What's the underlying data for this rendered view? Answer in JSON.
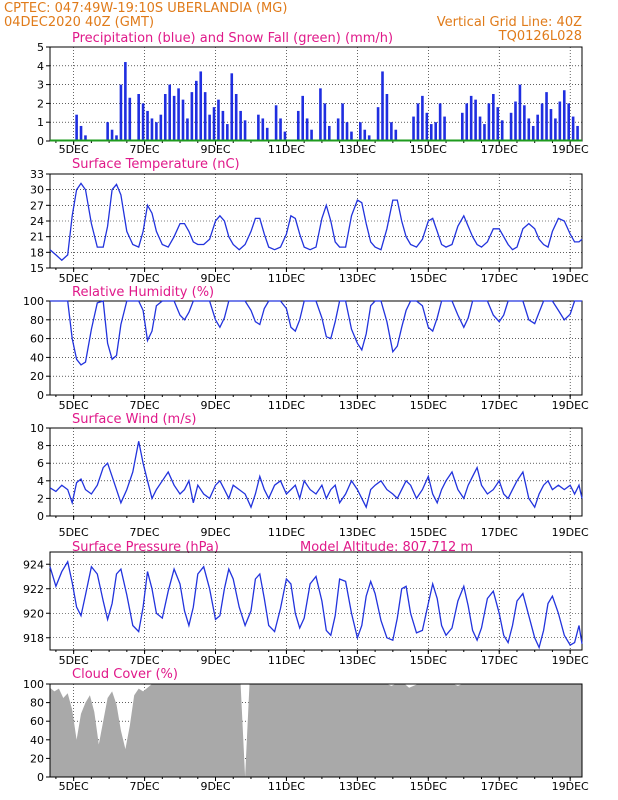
{
  "header": {
    "source_line": "CPTEC:   047:49W-19:10S   UBERLANDIA (MG)",
    "date_line": "04DEC2020 40Z (GMT)",
    "grid_note": "Vertical Grid Line: 40Z",
    "code": "TQ0126L028"
  },
  "x_axis": {
    "tick_labels": [
      "5DEC",
      "7DEC",
      "9DEC",
      "11DEC",
      "13DEC",
      "15DEC",
      "17DEC",
      "19DEC"
    ],
    "range_hours": [
      0,
      360
    ]
  },
  "colors": {
    "line": "#2233dd",
    "bars": "#1f2ee0",
    "snow": "#1e9b1e",
    "cloud": "#a9a9a9",
    "header": "#e07b1a",
    "title": "#e0198a"
  },
  "chart_data": [
    {
      "type": "bar",
      "title": "Precipitation (blue) and Snow Fall (green) (mm/h)",
      "ylim": [
        0,
        5
      ],
      "yticks": [
        "0",
        "1",
        "2",
        "3",
        "4",
        "5"
      ],
      "x_hours": [
        18,
        21,
        24,
        39,
        42,
        45,
        48,
        51,
        54,
        60,
        63,
        66,
        69,
        72,
        75,
        78,
        81,
        84,
        87,
        90,
        93,
        96,
        99,
        102,
        105,
        108,
        111,
        114,
        117,
        120,
        123,
        126,
        129,
        132,
        141,
        144,
        147,
        153,
        156,
        159,
        168,
        171,
        174,
        177,
        183,
        186,
        189,
        195,
        198,
        201,
        204,
        210,
        213,
        216,
        222,
        225,
        228,
        231,
        234,
        246,
        249,
        252,
        255,
        258,
        261,
        264,
        267,
        279,
        282,
        285,
        288,
        291,
        294,
        297,
        300,
        303,
        306,
        312,
        315,
        318,
        321,
        324,
        327,
        330,
        333,
        336,
        339,
        342,
        345,
        348,
        351,
        354,
        357
      ],
      "values": [
        1.4,
        0.8,
        0.3,
        1.0,
        0.6,
        0.3,
        3.0,
        4.2,
        2.3,
        2.5,
        2.0,
        1.6,
        1.2,
        1.0,
        1.4,
        2.5,
        3.0,
        2.4,
        2.8,
        2.2,
        1.2,
        2.6,
        3.2,
        3.7,
        2.6,
        1.4,
        1.8,
        2.2,
        1.6,
        0.9,
        3.6,
        2.5,
        1.6,
        1.1,
        1.4,
        1.2,
        0.7,
        1.9,
        1.2,
        0.5,
        1.6,
        2.4,
        1.2,
        0.6,
        2.8,
        2.0,
        0.8,
        1.2,
        2.0,
        1.0,
        0.5,
        1.0,
        0.6,
        0.3,
        1.8,
        3.7,
        2.5,
        1.0,
        0.6,
        1.3,
        2.0,
        2.4,
        1.5,
        0.9,
        1.0,
        2.0,
        1.3,
        1.5,
        2.0,
        2.4,
        2.2,
        1.3,
        0.9,
        2.0,
        2.5,
        1.8,
        1.1,
        1.5,
        2.1,
        3.0,
        1.9,
        1.2,
        0.8,
        1.4,
        2.0,
        2.6,
        1.7,
        1.2,
        2.1,
        2.7,
        2.0,
        1.3,
        0.8
      ],
      "snow_values": 0
    },
    {
      "type": "line",
      "title": "Surface Temperature (nC)",
      "ylim": [
        15,
        33
      ],
      "yticks": [
        "15",
        "18",
        "21",
        "24",
        "27",
        "30",
        "33"
      ],
      "x_hours": [
        0,
        4,
        8,
        12,
        15,
        18,
        21,
        24,
        28,
        32,
        36,
        39,
        42,
        45,
        48,
        52,
        56,
        60,
        63,
        66,
        69,
        72,
        76,
        80,
        84,
        88,
        91,
        94,
        97,
        100,
        104,
        108,
        112,
        115,
        118,
        121,
        124,
        128,
        132,
        136,
        139,
        142,
        145,
        148,
        152,
        156,
        160,
        163,
        166,
        169,
        172,
        176,
        180,
        184,
        187,
        190,
        193,
        196,
        200,
        204,
        208,
        211,
        214,
        217,
        220,
        224,
        228,
        232,
        235,
        238,
        241,
        244,
        248,
        252,
        256,
        259,
        262,
        265,
        268,
        272,
        276,
        280,
        283,
        286,
        289,
        292,
        296,
        300,
        304,
        307,
        310,
        313,
        316,
        320,
        324,
        328,
        331,
        334,
        337,
        340,
        344,
        348,
        352,
        355,
        358,
        360
      ],
      "values": [
        18.5,
        17.5,
        16.5,
        17.5,
        25,
        30,
        31.2,
        30,
        23.5,
        19,
        19,
        23,
        30,
        31,
        29,
        22,
        19.5,
        19,
        22,
        27,
        25.5,
        22,
        19.5,
        19,
        21,
        23.5,
        23.5,
        22,
        20,
        19.5,
        19.5,
        20.5,
        24,
        25,
        24,
        21,
        19.5,
        18.5,
        19.5,
        22,
        24.5,
        24.5,
        21.5,
        19,
        18.5,
        19,
        21.5,
        25,
        24.5,
        21.5,
        19,
        18.5,
        19,
        24.5,
        27,
        24,
        20,
        19,
        19,
        25,
        28,
        27.5,
        23.5,
        20,
        19,
        18.5,
        22.5,
        28,
        28,
        24,
        21,
        19.5,
        19,
        20.5,
        24,
        24.5,
        22,
        19.5,
        19,
        19.5,
        23,
        25,
        23,
        21,
        19.5,
        19,
        20,
        22.5,
        22.5,
        21,
        19.5,
        18.5,
        19,
        22.5,
        23.5,
        22.5,
        20.5,
        19.5,
        19,
        22,
        24.5,
        24,
        21.5,
        20,
        20,
        20.5
      ]
    },
    {
      "type": "line",
      "title": "Relative Humidity (%)",
      "ylim": [
        0,
        100
      ],
      "yticks": [
        "0",
        "20",
        "40",
        "60",
        "80",
        "100"
      ],
      "x_hours": [
        0,
        4,
        8,
        12,
        15,
        18,
        21,
        24,
        28,
        32,
        36,
        39,
        42,
        45,
        48,
        52,
        56,
        60,
        63,
        66,
        69,
        72,
        76,
        80,
        84,
        88,
        91,
        94,
        97,
        100,
        104,
        108,
        112,
        115,
        118,
        121,
        124,
        128,
        132,
        136,
        139,
        142,
        145,
        148,
        152,
        156,
        160,
        163,
        166,
        169,
        172,
        176,
        180,
        184,
        187,
        190,
        193,
        196,
        200,
        204,
        208,
        211,
        214,
        217,
        220,
        224,
        228,
        232,
        235,
        238,
        241,
        244,
        248,
        252,
        256,
        259,
        262,
        265,
        268,
        272,
        276,
        280,
        283,
        286,
        289,
        292,
        296,
        300,
        304,
        307,
        310,
        313,
        316,
        320,
        324,
        328,
        331,
        334,
        337,
        340,
        344,
        348,
        352,
        355,
        358,
        360
      ],
      "values": [
        100,
        100,
        100,
        100,
        60,
        38,
        32,
        35,
        70,
        98,
        100,
        55,
        38,
        42,
        75,
        100,
        100,
        100,
        90,
        58,
        68,
        95,
        100,
        100,
        100,
        85,
        80,
        88,
        100,
        100,
        100,
        100,
        80,
        72,
        82,
        100,
        100,
        100,
        100,
        90,
        78,
        75,
        92,
        100,
        100,
        100,
        92,
        72,
        68,
        80,
        100,
        100,
        100,
        82,
        62,
        60,
        78,
        100,
        100,
        70,
        55,
        48,
        65,
        95,
        100,
        100,
        78,
        46,
        52,
        72,
        90,
        100,
        100,
        95,
        72,
        68,
        82,
        100,
        100,
        100,
        85,
        72,
        82,
        100,
        100,
        100,
        100,
        85,
        78,
        85,
        100,
        100,
        100,
        100,
        80,
        76,
        88,
        100,
        100,
        100,
        90,
        80,
        86,
        100,
        100,
        100
      ]
    },
    {
      "type": "line",
      "title": "Surface Wind (m/s)",
      "ylim": [
        0,
        10
      ],
      "yticks": [
        "0",
        "2",
        "4",
        "6",
        "8",
        "10"
      ],
      "x_hours": [
        0,
        4,
        8,
        12,
        15,
        18,
        21,
        24,
        28,
        32,
        36,
        39,
        42,
        45,
        48,
        52,
        56,
        60,
        63,
        66,
        69,
        72,
        76,
        80,
        84,
        88,
        91,
        94,
        97,
        100,
        104,
        108,
        112,
        115,
        118,
        121,
        124,
        128,
        132,
        136,
        139,
        142,
        145,
        148,
        152,
        156,
        160,
        163,
        166,
        169,
        172,
        176,
        180,
        184,
        187,
        190,
        193,
        196,
        200,
        204,
        208,
        211,
        214,
        217,
        220,
        224,
        228,
        232,
        235,
        238,
        241,
        244,
        248,
        252,
        256,
        259,
        262,
        265,
        268,
        272,
        276,
        280,
        283,
        286,
        289,
        292,
        296,
        300,
        304,
        307,
        310,
        313,
        316,
        320,
        324,
        328,
        331,
        334,
        337,
        340,
        344,
        348,
        352,
        355,
        358,
        360
      ],
      "values": [
        3.2,
        2.8,
        3.5,
        3.0,
        1.5,
        3.8,
        4.2,
        3.0,
        2.5,
        3.5,
        5.5,
        6.0,
        4.5,
        3.0,
        1.5,
        3.0,
        5.0,
        8.5,
        6.0,
        4.0,
        2.0,
        3.0,
        4.0,
        5.0,
        3.5,
        2.5,
        3.0,
        4.0,
        1.5,
        3.5,
        2.5,
        2.0,
        3.5,
        4.0,
        3.0,
        2.0,
        3.5,
        3.0,
        2.5,
        1.0,
        2.5,
        4.5,
        3.0,
        2.0,
        3.5,
        4.0,
        2.5,
        3.0,
        3.5,
        2.0,
        4.0,
        3.0,
        2.5,
        3.5,
        2.0,
        3.0,
        3.5,
        1.5,
        2.5,
        4.0,
        3.0,
        2.0,
        1.0,
        3.0,
        3.5,
        4.0,
        3.0,
        2.5,
        2.0,
        3.0,
        4.0,
        3.5,
        2.0,
        3.0,
        4.5,
        2.5,
        1.5,
        3.0,
        4.0,
        5.0,
        3.0,
        2.0,
        3.5,
        4.5,
        5.5,
        3.5,
        2.5,
        3.0,
        4.0,
        2.5,
        2.0,
        3.0,
        4.0,
        5.0,
        2.0,
        1.0,
        2.5,
        3.5,
        4.0,
        3.0,
        3.5,
        3.0,
        3.5,
        2.5,
        3.5,
        2.0
      ]
    },
    {
      "type": "line",
      "title": "Surface Pressure (hPa)",
      "annotation": "Model Altitude: 807.712 m",
      "ylim": [
        917,
        925
      ],
      "yticks": [
        "918",
        "920",
        "922",
        "924"
      ],
      "x_hours": [
        0,
        4,
        8,
        12,
        15,
        18,
        21,
        24,
        28,
        32,
        36,
        39,
        42,
        45,
        48,
        52,
        56,
        60,
        63,
        66,
        69,
        72,
        76,
        80,
        84,
        88,
        91,
        94,
        97,
        100,
        104,
        108,
        112,
        115,
        118,
        121,
        124,
        128,
        132,
        136,
        139,
        142,
        145,
        148,
        152,
        156,
        160,
        163,
        166,
        169,
        172,
        176,
        180,
        184,
        187,
        190,
        193,
        196,
        200,
        204,
        208,
        211,
        214,
        217,
        220,
        224,
        228,
        232,
        235,
        238,
        241,
        244,
        248,
        252,
        256,
        259,
        262,
        265,
        268,
        272,
        276,
        280,
        283,
        286,
        289,
        292,
        296,
        300,
        304,
        307,
        310,
        313,
        316,
        320,
        324,
        328,
        331,
        334,
        337,
        340,
        344,
        348,
        352,
        355,
        358,
        360
      ],
      "values": [
        923.8,
        922.2,
        923.4,
        924.2,
        922.5,
        920.5,
        919.8,
        921.5,
        923.8,
        923.2,
        921.0,
        919.5,
        920.8,
        923.2,
        923.6,
        921.5,
        919.0,
        918.5,
        920.5,
        923.4,
        922.0,
        920.0,
        919.6,
        921.8,
        923.6,
        922.4,
        920.2,
        919.0,
        920.5,
        923.2,
        923.8,
        922.0,
        919.5,
        919.8,
        922.0,
        923.6,
        922.8,
        920.5,
        919.0,
        920.2,
        922.8,
        923.2,
        921.2,
        919.0,
        918.5,
        920.4,
        922.8,
        922.4,
        920.0,
        918.8,
        919.6,
        922.4,
        923.0,
        921.0,
        918.6,
        918.2,
        919.8,
        922.8,
        922.6,
        920.0,
        918.0,
        919.0,
        921.4,
        922.6,
        921.6,
        919.4,
        918.0,
        917.8,
        919.6,
        922.0,
        922.2,
        920.0,
        918.4,
        918.6,
        920.8,
        922.4,
        921.2,
        919.0,
        918.2,
        918.8,
        921.0,
        922.2,
        920.6,
        918.6,
        917.8,
        918.8,
        921.2,
        921.8,
        920.0,
        918.2,
        917.6,
        919.0,
        921.0,
        921.6,
        919.8,
        918.0,
        917.2,
        918.6,
        920.8,
        921.4,
        920.0,
        918.2,
        917.4,
        917.6,
        919.0,
        917.5
      ],
      "ylabel": ""
    },
    {
      "type": "area",
      "title": "Cloud Cover (%)",
      "ylim": [
        0,
        100
      ],
      "yticks": [
        "0",
        "20",
        "40",
        "60",
        "80",
        "100"
      ],
      "x_hours": [
        0,
        3,
        6,
        9,
        12,
        15,
        18,
        21,
        24,
        27,
        30,
        33,
        36,
        39,
        42,
        45,
        48,
        51,
        54,
        57,
        60,
        63,
        66,
        69,
        72,
        75,
        78,
        81,
        84,
        87,
        90,
        93,
        96,
        99,
        102,
        105,
        108,
        111,
        114,
        117,
        120,
        123,
        126,
        129,
        132,
        135,
        138,
        141,
        144,
        147,
        150,
        153,
        156,
        159,
        162,
        165,
        168,
        171,
        174,
        177,
        180,
        183,
        186,
        189,
        192,
        195,
        198,
        201,
        204,
        207,
        210,
        213,
        216,
        219,
        222,
        225,
        228,
        231,
        234,
        237,
        240,
        243,
        246,
        249,
        252,
        255,
        258,
        261,
        264,
        267,
        270,
        273,
        276,
        279,
        282,
        285,
        288,
        291,
        294,
        297,
        300,
        303,
        306,
        309,
        312,
        315,
        318,
        321,
        324,
        327,
        330,
        333,
        336,
        339,
        342,
        345,
        348,
        351,
        354,
        357,
        360
      ],
      "values": [
        96,
        92,
        95,
        85,
        90,
        72,
        40,
        68,
        80,
        88,
        70,
        35,
        60,
        85,
        92,
        78,
        50,
        30,
        55,
        88,
        95,
        92,
        96,
        100,
        100,
        100,
        100,
        100,
        100,
        100,
        100,
        100,
        100,
        100,
        100,
        100,
        100,
        100,
        100,
        100,
        100,
        100,
        100,
        100,
        0,
        100,
        100,
        100,
        100,
        100,
        100,
        100,
        100,
        100,
        100,
        100,
        100,
        100,
        100,
        100,
        100,
        100,
        100,
        100,
        100,
        100,
        100,
        100,
        100,
        100,
        100,
        100,
        100,
        100,
        100,
        100,
        100,
        98,
        100,
        100,
        100,
        96,
        98,
        100,
        100,
        100,
        100,
        100,
        100,
        100,
        100,
        100,
        98,
        100,
        100,
        100,
        100,
        100,
        100,
        100,
        100,
        100,
        100,
        100,
        100,
        100,
        100,
        100,
        100,
        100,
        100,
        100,
        100,
        100,
        100,
        100,
        100,
        100,
        100,
        100,
        100
      ]
    }
  ]
}
